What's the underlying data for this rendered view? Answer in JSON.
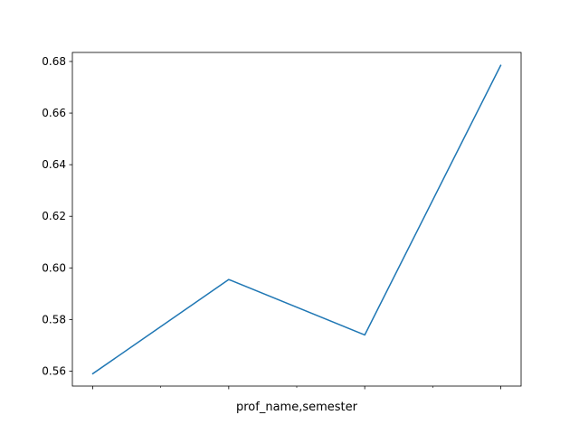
{
  "chart_data": {
    "type": "line",
    "title": "",
    "xlabel": "prof_name,semester",
    "ylabel": "",
    "x": [
      0,
      1,
      2,
      3
    ],
    "series": [
      {
        "values": [
          0.559,
          0.5955,
          0.574,
          0.6785
        ],
        "color": "#1f77b4"
      }
    ],
    "xlim": [
      -0.15,
      3.15
    ],
    "ylim": [
      0.5542,
      0.6835
    ],
    "yticks": [
      0.56,
      0.58,
      0.6,
      0.62,
      0.64,
      0.66,
      0.68
    ],
    "ytick_labels": [
      "0.56",
      "0.58",
      "0.60",
      "0.62",
      "0.64",
      "0.66",
      "0.68"
    ],
    "xticks_major": [
      0,
      1,
      2,
      3
    ],
    "xticks_minor": [
      0.5,
      1.5,
      2.5
    ],
    "grid": false,
    "legend": "none"
  }
}
